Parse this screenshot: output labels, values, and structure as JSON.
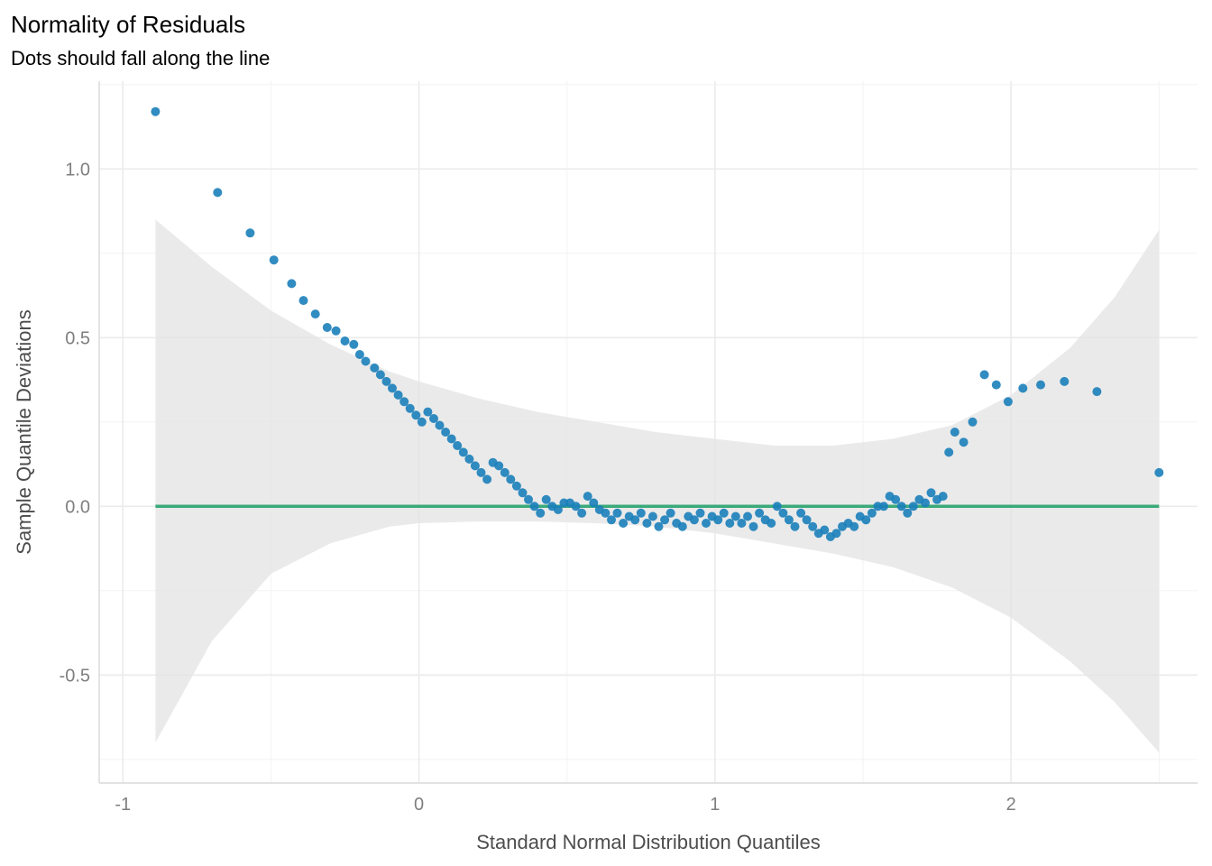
{
  "chart_data": {
    "type": "scatter",
    "title": "Normality of Residuals",
    "subtitle": "Dots should fall along the line",
    "xlabel": "Standard Normal Distribution Quantiles",
    "ylabel": "Sample Quantile Deviations",
    "xlim": [
      -1.08,
      2.63
    ],
    "ylim": [
      -0.82,
      1.26
    ],
    "x_ticks": [
      -1,
      0,
      1,
      2
    ],
    "x_tick_labels": [
      "-1",
      "0",
      "1",
      "2"
    ],
    "y_ticks": [
      -0.5,
      0.0,
      0.5,
      1.0
    ],
    "y_tick_labels": [
      "-0.5",
      "0.0",
      "0.5",
      "1.0"
    ],
    "grid": true,
    "reference_line": {
      "y": 0,
      "x_range": [
        -0.89,
        2.5
      ],
      "color": "#3aaa7a"
    },
    "point_color": "#1b7fba",
    "band_color": "#e3e3e3",
    "confidence_band": {
      "x": [
        -0.89,
        -0.7,
        -0.5,
        -0.3,
        -0.1,
        0.0,
        0.2,
        0.4,
        0.6,
        0.8,
        1.0,
        1.2,
        1.4,
        1.6,
        1.8,
        2.0,
        2.2,
        2.35,
        2.5
      ],
      "upper": [
        0.85,
        0.71,
        0.58,
        0.48,
        0.4,
        0.37,
        0.32,
        0.28,
        0.25,
        0.22,
        0.2,
        0.18,
        0.18,
        0.2,
        0.24,
        0.33,
        0.47,
        0.62,
        0.82
      ],
      "lower": [
        -0.7,
        -0.4,
        -0.2,
        -0.11,
        -0.06,
        -0.05,
        -0.045,
        -0.045,
        -0.05,
        -0.06,
        -0.08,
        -0.11,
        -0.14,
        -0.18,
        -0.24,
        -0.33,
        -0.46,
        -0.58,
        -0.73
      ]
    },
    "points": {
      "x": [
        -0.89,
        -0.68,
        -0.57,
        -0.49,
        -0.43,
        -0.39,
        -0.35,
        -0.31,
        -0.28,
        -0.25,
        -0.22,
        -0.2,
        -0.18,
        -0.15,
        -0.13,
        -0.11,
        -0.09,
        -0.07,
        -0.05,
        -0.03,
        -0.01,
        0.01,
        0.03,
        0.05,
        0.07,
        0.09,
        0.11,
        0.13,
        0.15,
        0.17,
        0.19,
        0.21,
        0.23,
        0.25,
        0.27,
        0.29,
        0.31,
        0.33,
        0.35,
        0.37,
        0.39,
        0.41,
        0.43,
        0.45,
        0.47,
        0.49,
        0.51,
        0.53,
        0.55,
        0.57,
        0.59,
        0.61,
        0.63,
        0.65,
        0.67,
        0.69,
        0.71,
        0.73,
        0.75,
        0.77,
        0.79,
        0.81,
        0.83,
        0.85,
        0.87,
        0.89,
        0.91,
        0.93,
        0.95,
        0.97,
        0.99,
        1.01,
        1.03,
        1.05,
        1.07,
        1.09,
        1.11,
        1.13,
        1.15,
        1.17,
        1.19,
        1.21,
        1.23,
        1.25,
        1.27,
        1.29,
        1.31,
        1.33,
        1.35,
        1.37,
        1.39,
        1.41,
        1.43,
        1.45,
        1.47,
        1.49,
        1.51,
        1.53,
        1.55,
        1.57,
        1.59,
        1.61,
        1.63,
        1.65,
        1.67,
        1.69,
        1.71,
        1.73,
        1.75,
        1.77,
        1.79,
        1.81,
        1.84,
        1.87,
        1.91,
        1.95,
        1.99,
        2.04,
        2.1,
        2.18,
        2.29,
        2.5
      ],
      "y": [
        1.17,
        0.93,
        0.81,
        0.73,
        0.66,
        0.61,
        0.57,
        0.53,
        0.52,
        0.49,
        0.48,
        0.45,
        0.43,
        0.41,
        0.39,
        0.37,
        0.35,
        0.33,
        0.31,
        0.29,
        0.27,
        0.25,
        0.28,
        0.26,
        0.24,
        0.22,
        0.2,
        0.18,
        0.16,
        0.14,
        0.12,
        0.1,
        0.08,
        0.13,
        0.12,
        0.1,
        0.08,
        0.06,
        0.04,
        0.02,
        0.0,
        -0.02,
        0.02,
        0.0,
        -0.01,
        0.01,
        0.01,
        0.0,
        -0.02,
        0.03,
        0.01,
        -0.01,
        -0.02,
        -0.04,
        -0.02,
        -0.05,
        -0.03,
        -0.04,
        -0.02,
        -0.05,
        -0.03,
        -0.06,
        -0.04,
        -0.02,
        -0.05,
        -0.06,
        -0.03,
        -0.04,
        -0.02,
        -0.05,
        -0.03,
        -0.04,
        -0.02,
        -0.05,
        -0.03,
        -0.05,
        -0.03,
        -0.06,
        -0.02,
        -0.04,
        -0.05,
        0.0,
        -0.02,
        -0.04,
        -0.06,
        -0.02,
        -0.04,
        -0.06,
        -0.08,
        -0.07,
        -0.09,
        -0.08,
        -0.06,
        -0.05,
        -0.06,
        -0.03,
        -0.04,
        -0.02,
        0.0,
        0.0,
        0.03,
        0.02,
        0.0,
        -0.02,
        0.0,
        0.02,
        0.01,
        0.04,
        0.02,
        0.03,
        0.16,
        0.22,
        0.19,
        0.25,
        0.39,
        0.36,
        0.31,
        0.35,
        0.36,
        0.37,
        0.34,
        0.1
      ]
    }
  }
}
